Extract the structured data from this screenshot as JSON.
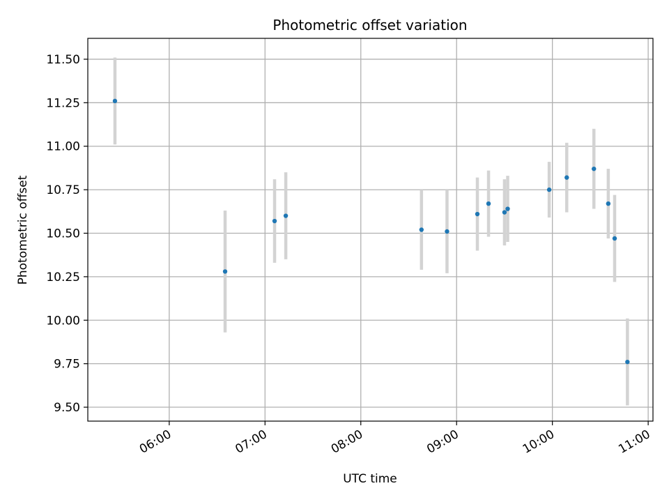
{
  "chart_data": {
    "type": "scatter",
    "title": "Photometric offset variation",
    "xlabel": "UTC time",
    "ylabel": "Photometric offset",
    "x_axis": "time (hours, UTC)",
    "xlim": [
      "05:09",
      "11:03"
    ],
    "ylim": [
      9.42,
      11.62
    ],
    "x_ticks": [
      "06:00",
      "07:00",
      "08:00",
      "09:00",
      "10:00",
      "11:00"
    ],
    "y_ticks": [
      "9.50",
      "9.75",
      "10.00",
      "10.25",
      "10.50",
      "10.75",
      "11.00",
      "11.25",
      "11.50"
    ],
    "grid": true,
    "marker_color": "#1f77b4",
    "errorbar_color": "#d3d3d3",
    "series": [
      {
        "points": [
          {
            "x": "05:26",
            "y": 11.26,
            "err": 0.25
          },
          {
            "x": "06:35",
            "y": 10.28,
            "err": 0.35
          },
          {
            "x": "07:06",
            "y": 10.57,
            "err": 0.24
          },
          {
            "x": "07:13",
            "y": 10.6,
            "err": 0.25
          },
          {
            "x": "08:38",
            "y": 10.52,
            "err": 0.23
          },
          {
            "x": "08:54",
            "y": 10.51,
            "err": 0.24
          },
          {
            "x": "09:13",
            "y": 10.61,
            "err": 0.21
          },
          {
            "x": "09:20",
            "y": 10.67,
            "err": 0.19
          },
          {
            "x": "09:30",
            "y": 10.62,
            "err": 0.19
          },
          {
            "x": "09:32",
            "y": 10.64,
            "err": 0.19
          },
          {
            "x": "09:58",
            "y": 10.75,
            "err": 0.16
          },
          {
            "x": "10:09",
            "y": 10.82,
            "err": 0.2
          },
          {
            "x": "10:26",
            "y": 10.87,
            "err": 0.23
          },
          {
            "x": "10:35",
            "y": 10.67,
            "err": 0.2
          },
          {
            "x": "10:39",
            "y": 10.47,
            "err": 0.25
          },
          {
            "x": "10:47",
            "y": 9.76,
            "err": 0.25
          }
        ]
      }
    ]
  }
}
